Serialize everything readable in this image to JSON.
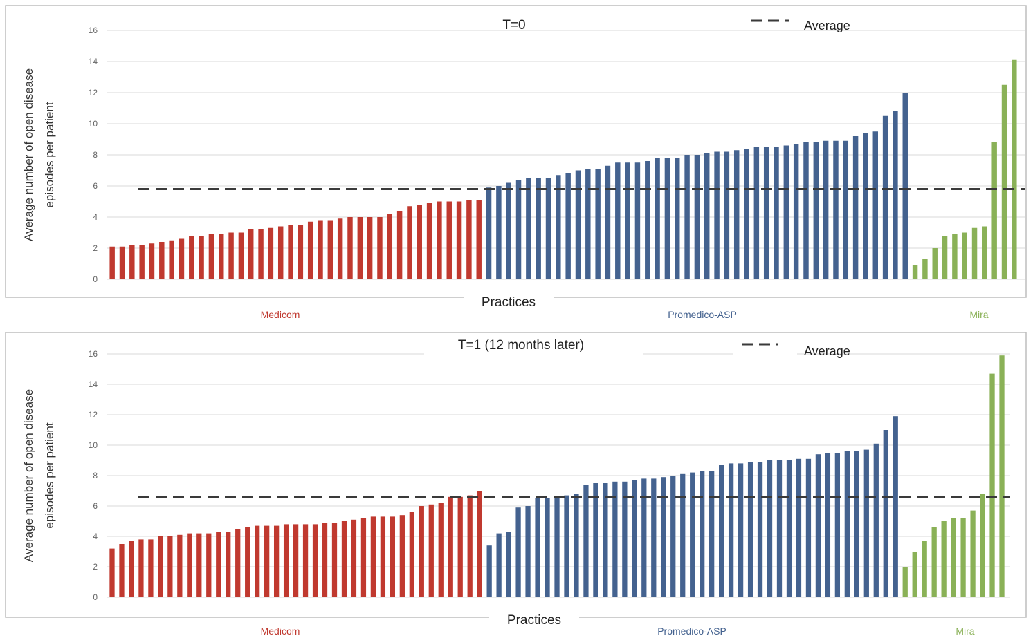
{
  "chart_data": [
    {
      "type": "bar",
      "title": "T=0",
      "xlabel": "Practices",
      "ylabel": [
        "Average  number of open disease",
        "episodes  per patient"
      ],
      "yticks": [
        "0",
        "2",
        "4",
        "6",
        "8",
        "10",
        "12",
        "14",
        "16"
      ],
      "ylim": [
        0,
        16
      ],
      "grid": true,
      "legend": {
        "label": "Average",
        "position": "top-right"
      },
      "average": 5.8,
      "groups": [
        {
          "name": "Medicom",
          "color": "#c0392f",
          "values": [
            2.1,
            2.1,
            2.2,
            2.2,
            2.3,
            2.4,
            2.5,
            2.6,
            2.8,
            2.8,
            2.9,
            2.9,
            3.0,
            3.0,
            3.2,
            3.2,
            3.3,
            3.4,
            3.5,
            3.5,
            3.7,
            3.8,
            3.8,
            3.9,
            4.0,
            4.0,
            4.0,
            4.0,
            4.2,
            4.4,
            4.7,
            4.8,
            4.9,
            5.0,
            5.0,
            5.0,
            5.1,
            5.1
          ]
        },
        {
          "name": "Promedico-ASP",
          "color": "#44628f",
          "values": [
            5.9,
            6.0,
            6.2,
            6.4,
            6.5,
            6.5,
            6.5,
            6.7,
            6.8,
            7.0,
            7.1,
            7.1,
            7.3,
            7.5,
            7.5,
            7.5,
            7.6,
            7.8,
            7.8,
            7.8,
            8.0,
            8.0,
            8.1,
            8.2,
            8.2,
            8.3,
            8.4,
            8.5,
            8.5,
            8.5,
            8.6,
            8.7,
            8.8,
            8.8,
            8.9,
            8.9,
            8.9,
            9.2,
            9.4,
            9.5,
            10.5,
            10.8,
            12.0
          ]
        },
        {
          "name": "Mira",
          "color": "#8ab157",
          "values": [
            0.9,
            1.3,
            2.0,
            2.8,
            2.9,
            3.0,
            3.3,
            3.4,
            8.8,
            12.5,
            14.1
          ]
        }
      ]
    },
    {
      "type": "bar",
      "title": "T=1  (12 months later)",
      "xlabel": "Practices",
      "ylabel": [
        "Average  number of open disease",
        "episodes  per patient"
      ],
      "yticks": [
        "0",
        "2",
        "4",
        "6",
        "8",
        "10",
        "12",
        "14",
        "16"
      ],
      "ylim": [
        0,
        16
      ],
      "grid": true,
      "legend": {
        "label": "Average",
        "position": "top-right"
      },
      "average": 6.6,
      "groups": [
        {
          "name": "Medicom",
          "color": "#c0392f",
          "values": [
            3.2,
            3.5,
            3.7,
            3.8,
            3.8,
            4.0,
            4.0,
            4.1,
            4.2,
            4.2,
            4.2,
            4.3,
            4.3,
            4.5,
            4.6,
            4.7,
            4.7,
            4.7,
            4.8,
            4.8,
            4.8,
            4.8,
            4.9,
            4.9,
            5.0,
            5.1,
            5.2,
            5.3,
            5.3,
            5.3,
            5.4,
            5.6,
            6.0,
            6.1,
            6.2,
            6.6,
            6.6,
            6.7,
            7.0
          ]
        },
        {
          "name": "Promedico-ASP",
          "color": "#44628f",
          "values": [
            3.4,
            4.2,
            4.3,
            5.9,
            6.0,
            6.5,
            6.5,
            6.6,
            6.7,
            6.8,
            7.4,
            7.5,
            7.5,
            7.6,
            7.6,
            7.7,
            7.8,
            7.8,
            7.9,
            8.0,
            8.1,
            8.2,
            8.3,
            8.3,
            8.7,
            8.8,
            8.8,
            8.9,
            8.9,
            9.0,
            9.0,
            9.0,
            9.1,
            9.1,
            9.4,
            9.5,
            9.5,
            9.6,
            9.6,
            9.7,
            10.1,
            11.0,
            11.9
          ]
        },
        {
          "name": "Mira",
          "color": "#8ab157",
          "values": [
            2.0,
            3.0,
            3.7,
            4.6,
            5.0,
            5.2,
            5.2,
            5.7,
            6.8,
            14.7,
            15.9
          ]
        }
      ]
    }
  ]
}
